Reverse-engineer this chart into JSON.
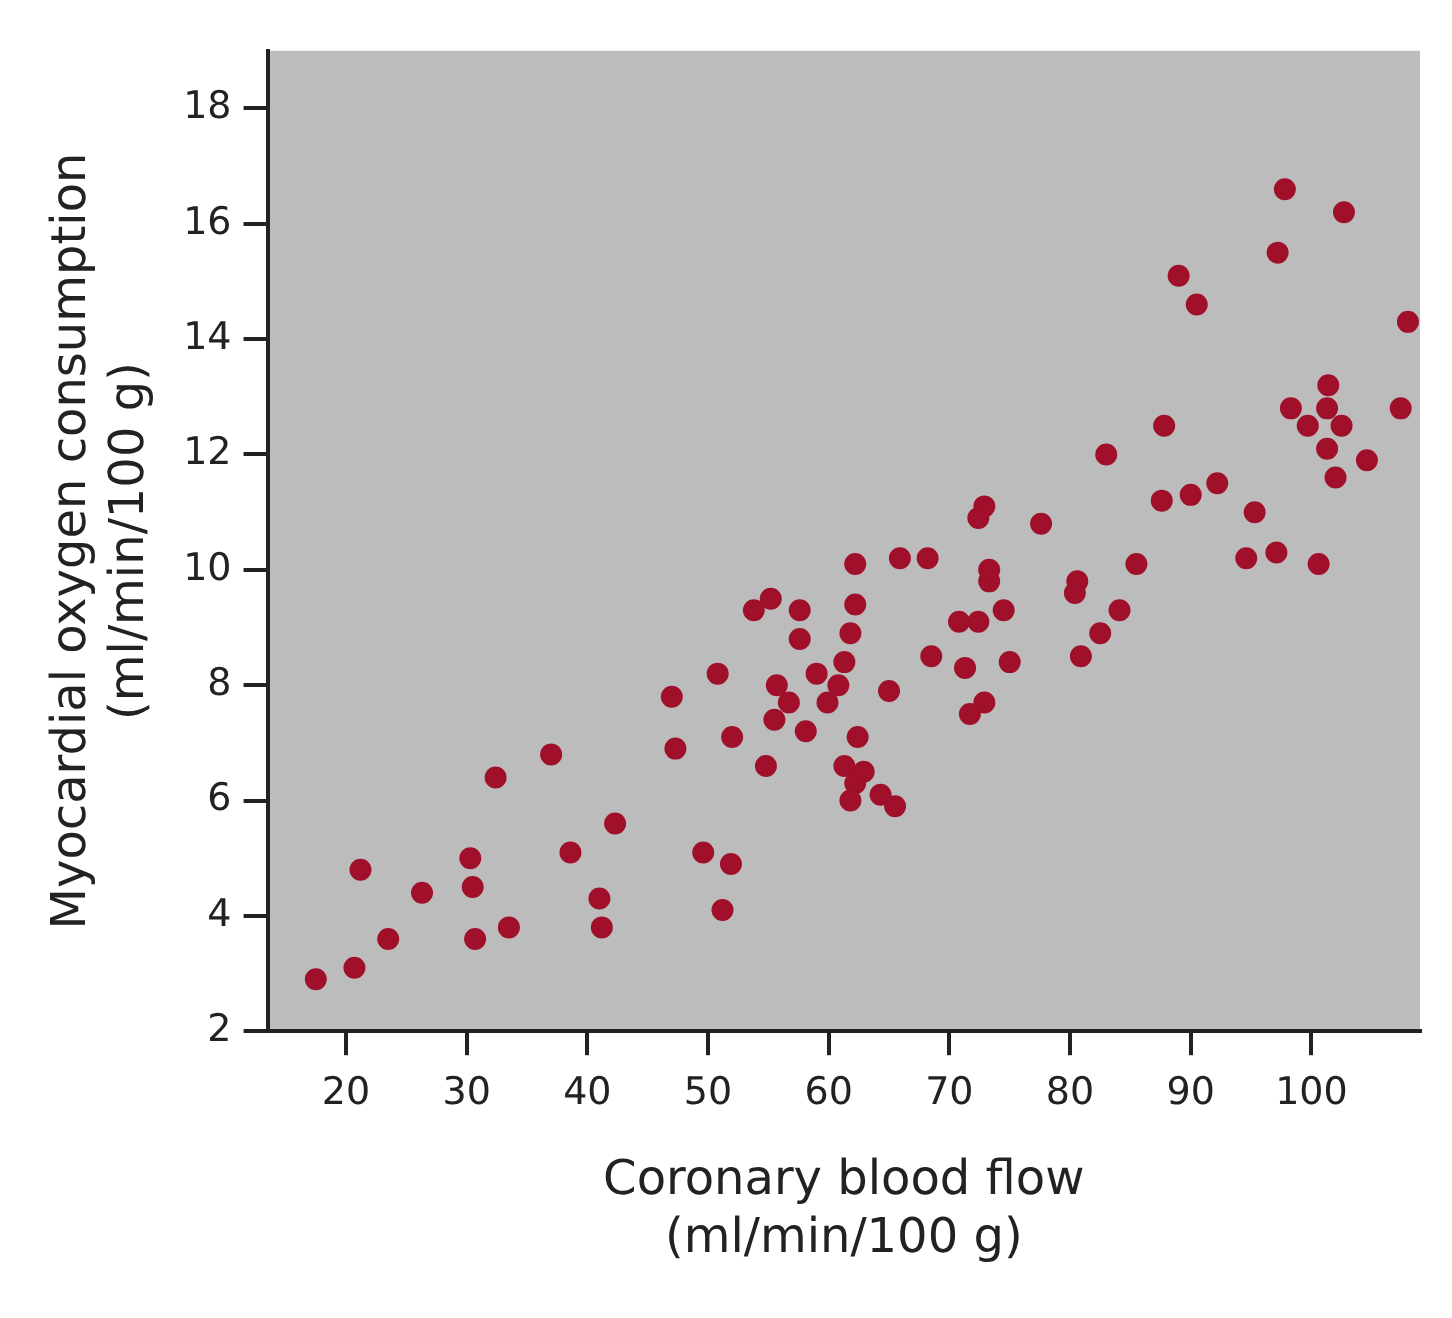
{
  "chart_data": {
    "type": "scatter",
    "xlabel": "Coronary blood flow\n(ml/min/100 g)",
    "ylabel": "Myocardial oxygen consumption\n(ml/min/100 g)",
    "marker": "circle",
    "grid": false,
    "legend": false,
    "xlim": [
      13.5,
      109
    ],
    "ylim": [
      2,
      19
    ],
    "xticks": [
      20,
      30,
      40,
      50,
      60,
      70,
      80,
      90,
      100
    ],
    "yticks": [
      2,
      4,
      6,
      8,
      10,
      12,
      14,
      16,
      18
    ],
    "series": [
      {
        "color": "#a0102a",
        "x": [
          17.5,
          20.7,
          21.2,
          23.5,
          26.3,
          30.3,
          30.5,
          30.7,
          32.4,
          33.5,
          37,
          38.6,
          41,
          41.2,
          42.3,
          47,
          47.3,
          49.6,
          50.8,
          51.2,
          51.9,
          52,
          53.8,
          55.2,
          54.8,
          55.5,
          55.7,
          56.7,
          57.6,
          57.6,
          58.1,
          59,
          59.9,
          60.8,
          61.3,
          61.8,
          62.2,
          62.2,
          62.4,
          61.3,
          62.2,
          61.8,
          62.9,
          64.3,
          65.5,
          65,
          65.9,
          68.2,
          68.5,
          70.8,
          71.3,
          71.7,
          72.9,
          72.4,
          72.9,
          72.4,
          73.3,
          74.5,
          75,
          73.3,
          77.6,
          80.6,
          80.4,
          80.9,
          82.5,
          83,
          84.1,
          85.5,
          87.8,
          87.6,
          89,
          90.5,
          90,
          92.2,
          95.3,
          94.6,
          97.1,
          100.6,
          97.8,
          102.7,
          97.2,
          101.4,
          98.3,
          101.3,
          99.7,
          102.5,
          101.3,
          104.6,
          102,
          107.4,
          108
        ],
        "values": [
          2.9,
          3.1,
          4.8,
          3.6,
          4.4,
          5.0,
          4.5,
          3.6,
          6.4,
          3.8,
          6.8,
          5.1,
          4.3,
          3.8,
          5.6,
          7.8,
          6.9,
          5.1,
          8.2,
          4.1,
          4.9,
          7.1,
          9.3,
          9.5,
          6.6,
          7.4,
          8.0,
          7.7,
          8.8,
          9.3,
          7.2,
          8.2,
          7.7,
          8.0,
          8.4,
          8.9,
          9.4,
          10.1,
          7.1,
          6.6,
          6.3,
          6.0,
          6.5,
          6.1,
          5.9,
          7.9,
          10.2,
          10.2,
          8.5,
          9.1,
          8.3,
          7.5,
          11.1,
          10.9,
          7.7,
          9.1,
          9.8,
          9.3,
          8.4,
          10.0,
          10.8,
          9.8,
          9.6,
          8.5,
          8.9,
          12.0,
          9.3,
          10.1,
          12.5,
          11.2,
          15.1,
          14.6,
          11.3,
          11.5,
          11.0,
          10.2,
          10.3,
          10.1,
          16.6,
          16.2,
          15.5,
          13.2,
          12.8,
          12.8,
          12.5,
          12.5,
          12.1,
          11.9,
          11.6,
          12.8,
          14.3
        ]
      }
    ]
  }
}
